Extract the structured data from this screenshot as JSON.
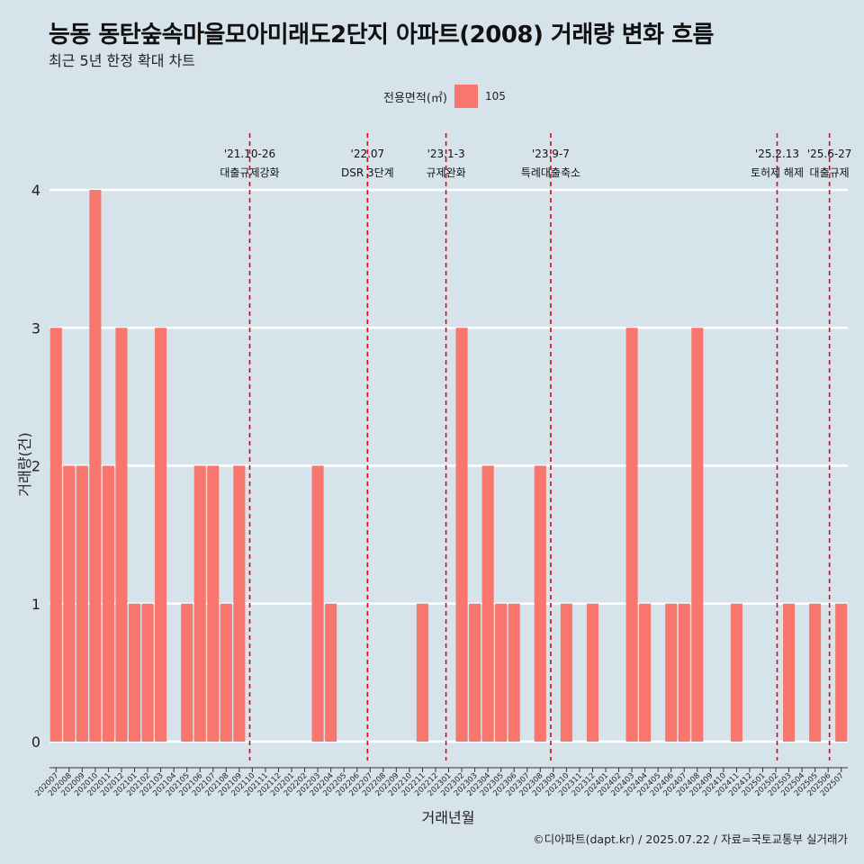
{
  "title": "능동 동탄숲속마을모아미래도2단지 아파트(2008) 거래량 변화 흐름",
  "subtitle": "최근 5년 한정 확대 차트",
  "caption": "©디아파트(dapt.kr) / 2025.07.22 / 자료=국토교통부 실거래가",
  "legend": {
    "title": "전용면적(㎡)",
    "items": [
      {
        "label": "105",
        "color": "#f8766d"
      }
    ]
  },
  "chart_data": {
    "type": "bar",
    "xlabel": "거래년월",
    "ylabel": "거래량(건)",
    "ylim": [
      0,
      4
    ],
    "y_ticks": [
      0,
      1,
      2,
      3,
      4
    ],
    "grid": true,
    "legend_position": "top",
    "bar_color": "#f8766d",
    "categories": [
      "202007",
      "202008",
      "202009",
      "202010",
      "202011",
      "202012",
      "202101",
      "202102",
      "202103",
      "202104",
      "202105",
      "202106",
      "202107",
      "202108",
      "202109",
      "202110",
      "202111",
      "202112",
      "202201",
      "202202",
      "202203",
      "202204",
      "202205",
      "202206",
      "202207",
      "202208",
      "202209",
      "202210",
      "202211",
      "202212",
      "202301",
      "202302",
      "202303",
      "202304",
      "202305",
      "202306",
      "202307",
      "202308",
      "202309",
      "202310",
      "202311",
      "202312",
      "202401",
      "202402",
      "202403",
      "202404",
      "202405",
      "202406",
      "202407",
      "202408",
      "202409",
      "202410",
      "202411",
      "202412",
      "202501",
      "202502",
      "202503",
      "202504",
      "202505",
      "202506",
      "202507"
    ],
    "series": [
      {
        "name": "105",
        "values": [
          3,
          2,
          2,
          4,
          2,
          3,
          1,
          1,
          3,
          null,
          1,
          2,
          2,
          1,
          2,
          null,
          null,
          null,
          null,
          null,
          2,
          1,
          null,
          null,
          null,
          null,
          null,
          null,
          1,
          null,
          null,
          3,
          1,
          2,
          1,
          1,
          null,
          2,
          null,
          1,
          null,
          1,
          null,
          null,
          3,
          1,
          null,
          1,
          1,
          3,
          null,
          null,
          1,
          null,
          null,
          null,
          1,
          null,
          1,
          null,
          1
        ]
      }
    ],
    "events": [
      {
        "x": 15.3,
        "date": "'21.10-26",
        "label": "대출규제강화"
      },
      {
        "x": 24.3,
        "date": "'22.07",
        "label": "DSR 3단계"
      },
      {
        "x": 30.3,
        "date": "'23.1-3",
        "label": "규제완화"
      },
      {
        "x": 38.3,
        "date": "'23.9-7",
        "label": "특례대출축소"
      },
      {
        "x": 55.6,
        "date": "'25.2.13",
        "label": "토허제 해제"
      },
      {
        "x": 59.6,
        "date": "'25.6-27",
        "label": "대출규제"
      }
    ],
    "event_color": "#e8000b"
  }
}
